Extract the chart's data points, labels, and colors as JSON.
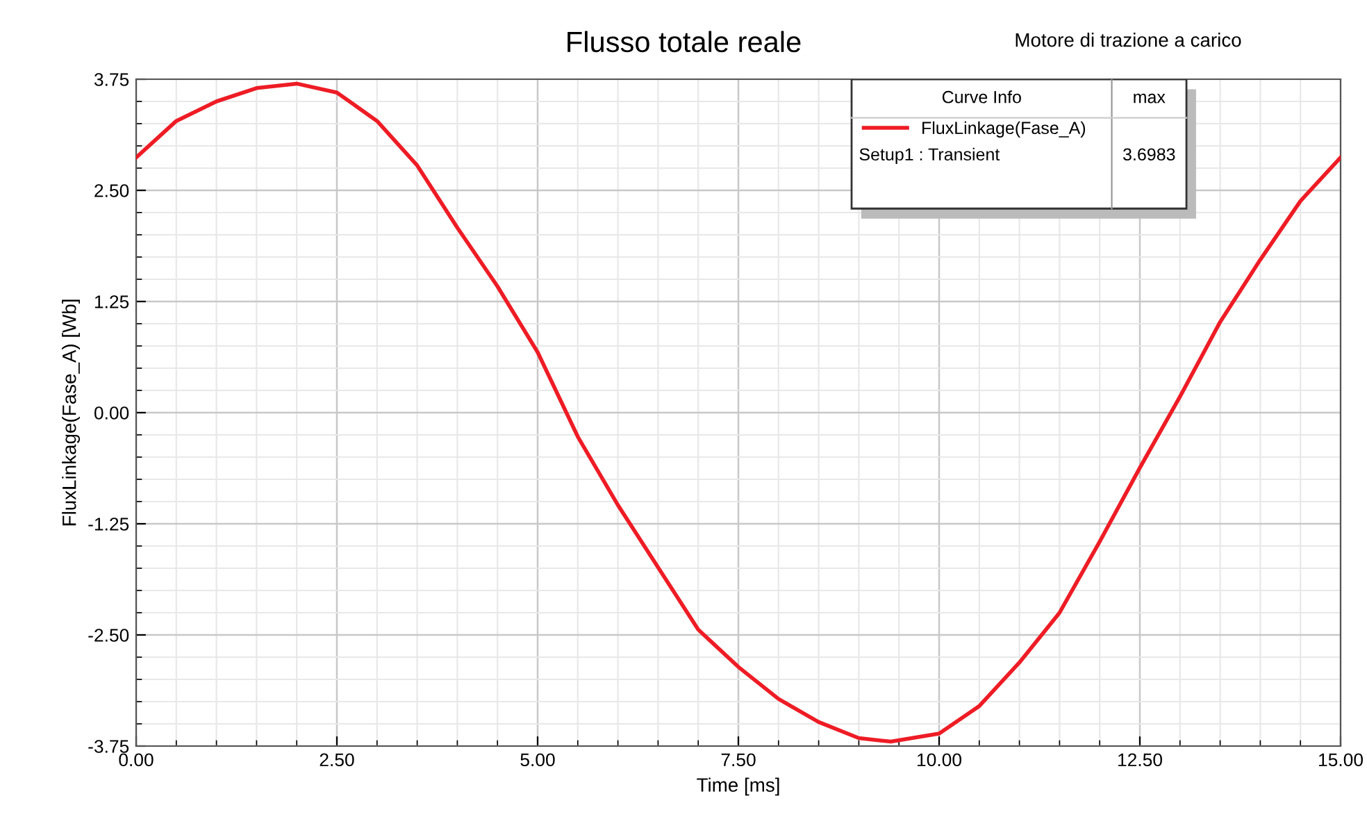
{
  "chart_data": {
    "type": "line",
    "title": "Flusso totale reale",
    "subtitle": "Motore di trazione a carico",
    "xlabel": "Time [ms]",
    "ylabel": "FluxLinkage(Fase_A) [Wb]",
    "legend_title": "Curve Info",
    "annotations": [
      "max",
      "Setup1 : Transient",
      "3.6983"
    ],
    "series": [
      {
        "name": "FluxLinkage(Fase_A)",
        "color": "#ee1c25",
        "x": [
          0,
          0.5,
          1.0,
          1.5,
          2.0,
          2.5,
          3.0,
          3.5,
          4.0,
          4.5,
          5.0,
          5.5,
          6.0,
          6.5,
          7.0,
          7.5,
          8.0,
          8.5,
          9.0,
          9.4,
          10.0,
          10.5,
          11.0,
          11.5,
          12.0,
          12.5,
          13.0,
          13.5,
          14.0,
          14.5,
          15.0
        ],
        "values": [
          2.87,
          3.28,
          3.5,
          3.65,
          3.7,
          3.6,
          3.28,
          2.78,
          2.08,
          1.42,
          0.68,
          -0.27,
          -1.04,
          -1.74,
          -2.44,
          -2.86,
          -3.22,
          -3.48,
          -3.66,
          -3.7,
          -3.61,
          -3.3,
          -2.81,
          -2.25,
          -1.45,
          -0.62,
          0.18,
          1.02,
          1.72,
          2.38,
          2.87
        ]
      }
    ],
    "xlim": [
      0,
      15
    ],
    "ylim": [
      -3.75,
      3.75
    ],
    "xticks": [
      {
        "value": 0,
        "label": "0.00"
      },
      {
        "value": 2.5,
        "label": "2.50"
      },
      {
        "value": 5,
        "label": "5.00"
      },
      {
        "value": 7.5,
        "label": "7.50"
      },
      {
        "value": 10,
        "label": "10.00"
      },
      {
        "value": 12.5,
        "label": "12.50"
      },
      {
        "value": 15,
        "label": "15.00"
      }
    ],
    "yticks": [
      -3.75,
      {
        "value": -2.5,
        "label": "-2.50"
      },
      -1.25,
      {
        "value": 0,
        "label": "0.00"
      },
      1.25,
      {
        "value": 2.5,
        "label": "2.50"
      },
      3.75
    ],
    "grid": true,
    "legend": "top right",
    "line_style": "solid",
    "marker": "none"
  }
}
